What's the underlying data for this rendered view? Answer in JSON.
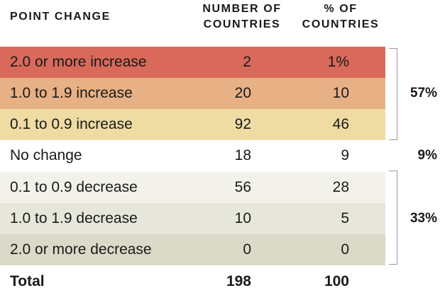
{
  "headers": {
    "point_change": "POINT CHANGE",
    "num_line1": "NUMBER OF",
    "num_line2": "COUNTRIES",
    "pct_line1": "% OF",
    "pct_line2": "COUNTRIES"
  },
  "rows": [
    {
      "label": "2.0 or more increase",
      "number": "2",
      "percent": "1%",
      "color": "#d9695a"
    },
    {
      "label": "1.0 to 1.9 increase",
      "number": "20",
      "percent": "10",
      "color": "#e8b085"
    },
    {
      "label": "0.1 to 0.9 increase",
      "number": "92",
      "percent": "46",
      "color": "#eedca3"
    },
    {
      "label": "No change",
      "number": "18",
      "percent": "9",
      "color": "#ffffff"
    },
    {
      "label": "0.1 to 0.9 decrease",
      "number": "56",
      "percent": "28",
      "color": "#f3f2ea"
    },
    {
      "label": "1.0 to 1.9 decrease",
      "number": "10",
      "percent": "5",
      "color": "#e7e6da"
    },
    {
      "label": "2.0 or more decrease",
      "number": "0",
      "percent": "0",
      "color": "#dbdac8"
    }
  ],
  "total": {
    "label": "Total",
    "number": "198",
    "percent": "100"
  },
  "group_totals": {
    "increase": "57%",
    "no_change": "9%",
    "decrease": "33%"
  }
}
